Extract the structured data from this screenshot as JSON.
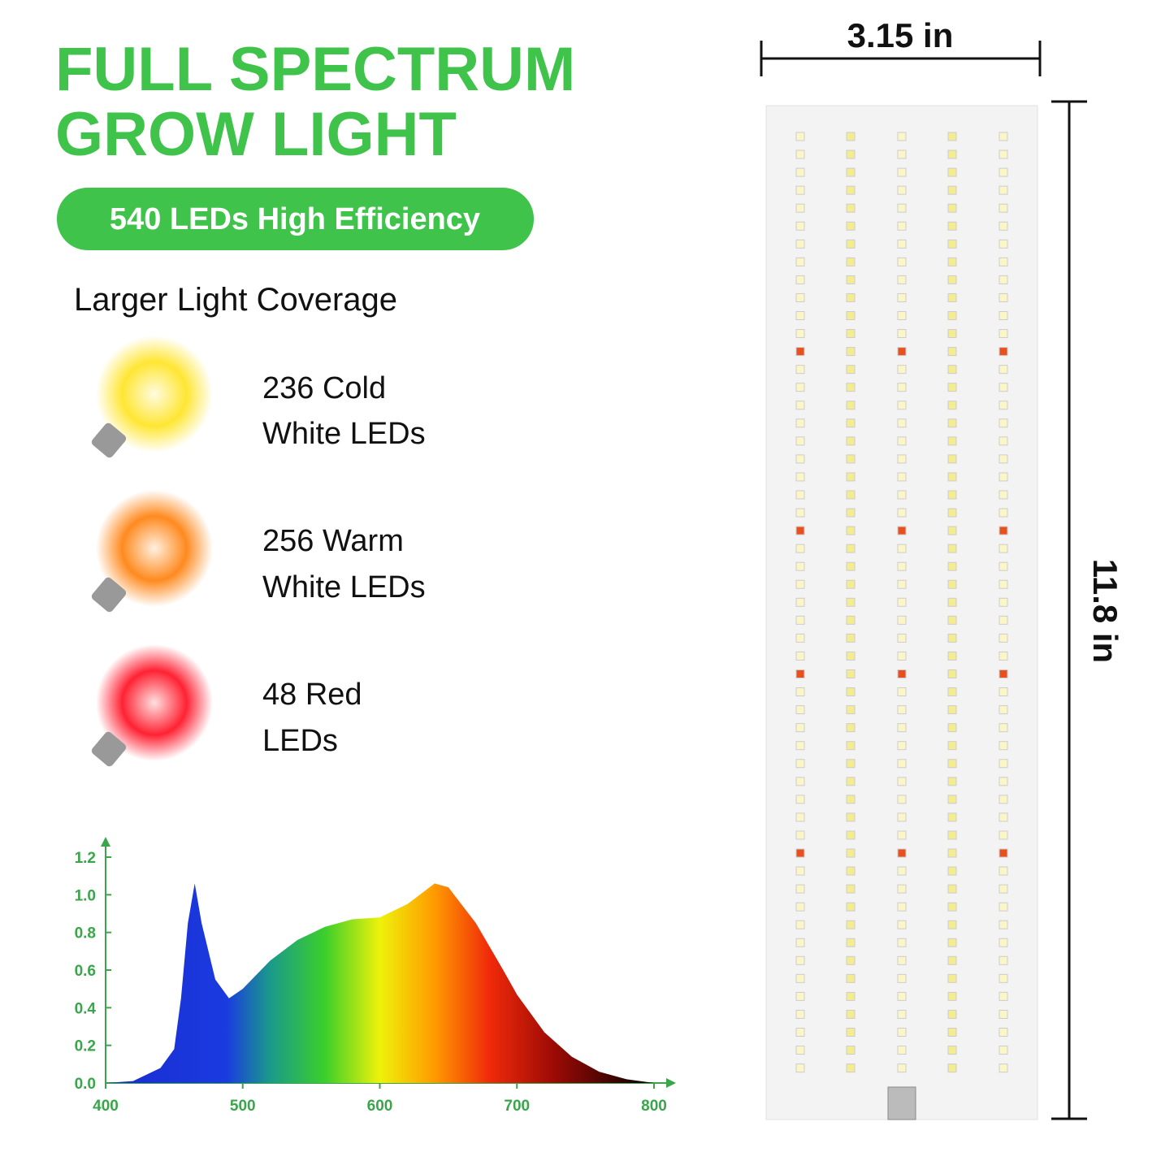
{
  "header": {
    "title": [
      "FULL SPECTRUM",
      "GROW LIGHT"
    ],
    "badge": "540 LEDs High Efficiency",
    "subtitle": "Larger Light Coverage"
  },
  "items": [
    {
      "lines": [
        "236 Cold",
        "White LEDs"
      ]
    },
    {
      "lines": [
        "256 Warm",
        "White LEDs"
      ]
    },
    {
      "lines": [
        "48 Red",
        "LEDs"
      ]
    }
  ],
  "dimensions": {
    "width": "3.15 in",
    "height": "11.8 in"
  },
  "chart_data": {
    "type": "area",
    "x": [
      400,
      420,
      440,
      450,
      455,
      460,
      465,
      470,
      480,
      490,
      500,
      520,
      540,
      560,
      580,
      600,
      620,
      640,
      650,
      670,
      690,
      700,
      720,
      740,
      760,
      780,
      800
    ],
    "values": [
      0,
      0.01,
      0.08,
      0.18,
      0.45,
      0.85,
      1.06,
      0.85,
      0.55,
      0.45,
      0.5,
      0.65,
      0.76,
      0.83,
      0.87,
      0.88,
      0.95,
      1.06,
      1.04,
      0.85,
      0.6,
      0.47,
      0.27,
      0.14,
      0.06,
      0.02,
      0
    ],
    "xlim": [
      400,
      800
    ],
    "ylim": [
      0,
      1.2
    ],
    "xticks": [
      400,
      500,
      600,
      700,
      800
    ],
    "yticks": [
      {
        "value": 0,
        "label": "0.0"
      },
      0.2,
      0.4,
      0.6,
      0.8,
      {
        "value": 1,
        "label": "1.0"
      },
      1.2
    ]
  }
}
